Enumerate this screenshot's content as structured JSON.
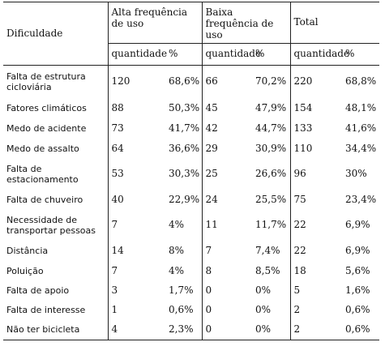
{
  "table": {
    "header": {
      "dificuldade": "Dificuldade",
      "groups": [
        "Alta frequência de uso",
        "Baixa frequência de uso",
        "Total"
      ],
      "sub_quantidade": "quantidade",
      "sub_percent": "%"
    },
    "rows": [
      {
        "label": "Falta de estrutura cicloviária",
        "alta_q": "120",
        "alta_p": "68,6%",
        "baixa_q": "66",
        "baixa_p": "70,2%",
        "total_q": "220",
        "total_p": "68,8%"
      },
      {
        "label": "Fatores climáticos",
        "alta_q": "88",
        "alta_p": "50,3%",
        "baixa_q": "45",
        "baixa_p": "47,9%",
        "total_q": "154",
        "total_p": "48,1%"
      },
      {
        "label": "Medo de acidente",
        "alta_q": "73",
        "alta_p": "41,7%",
        "baixa_q": "42",
        "baixa_p": "44,7%",
        "total_q": "133",
        "total_p": "41,6%"
      },
      {
        "label": "Medo de assalto",
        "alta_q": "64",
        "alta_p": "36,6%",
        "baixa_q": "29",
        "baixa_p": "30,9%",
        "total_q": "110",
        "total_p": "34,4%"
      },
      {
        "label": "Falta de estacionamento",
        "alta_q": "53",
        "alta_p": "30,3%",
        "baixa_q": "25",
        "baixa_p": "26,6%",
        "total_q": "96",
        "total_p": "30%"
      },
      {
        "label": "Falta de chuveiro",
        "alta_q": "40",
        "alta_p": "22,9%",
        "baixa_q": "24",
        "baixa_p": "25,5%",
        "total_q": "75",
        "total_p": "23,4%"
      },
      {
        "label": "Necessidade de transportar pessoas",
        "alta_q": "7",
        "alta_p": "4%",
        "baixa_q": "11",
        "baixa_p": "11,7%",
        "total_q": "22",
        "total_p": "6,9%"
      },
      {
        "label": "Distância",
        "alta_q": "14",
        "alta_p": "8%",
        "baixa_q": "7",
        "baixa_p": "7,4%",
        "total_q": "22",
        "total_p": "6,9%"
      },
      {
        "label": "Poluição",
        "alta_q": "7",
        "alta_p": "4%",
        "baixa_q": "8",
        "baixa_p": "8,5%",
        "total_q": "18",
        "total_p": "5,6%"
      },
      {
        "label": "Falta de apoio",
        "alta_q": "3",
        "alta_p": "1,7%",
        "baixa_q": "0",
        "baixa_p": "0%",
        "total_q": "5",
        "total_p": "1,6%"
      },
      {
        "label": "Falta de interesse",
        "alta_q": "1",
        "alta_p": "0,6%",
        "baixa_q": "0",
        "baixa_p": "0%",
        "total_q": "2",
        "total_p": "0,6%"
      },
      {
        "label": "Não ter bicicleta",
        "alta_q": "4",
        "alta_p": "2,3%",
        "baixa_q": "0",
        "baixa_p": "0%",
        "total_q": "2",
        "total_p": "0,6%"
      }
    ]
  }
}
